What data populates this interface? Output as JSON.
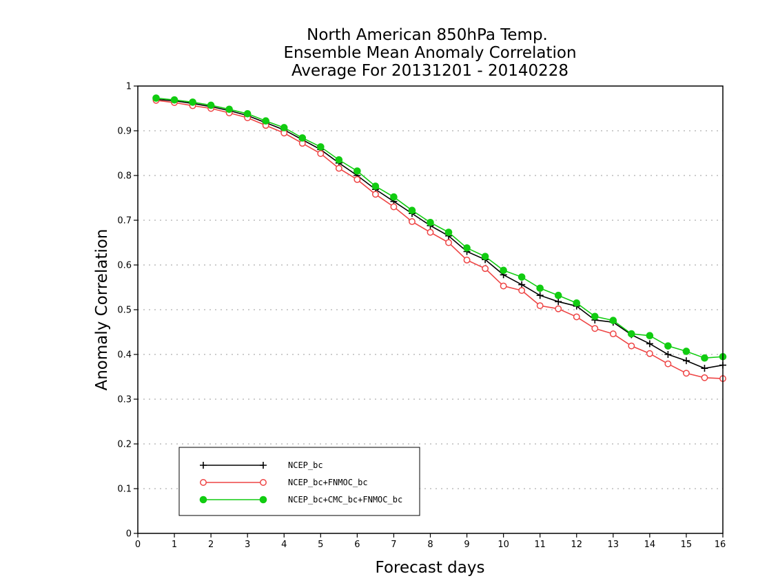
{
  "chart_data": {
    "type": "line",
    "title_lines": [
      "North American 850hPa Temp.",
      "Ensemble Mean Anomaly Correlation",
      "Average For 20131201 - 20140228"
    ],
    "xlabel": "Forecast days",
    "ylabel": "Anomaly Correlation",
    "xlim": [
      0,
      16
    ],
    "ylim": [
      0,
      1
    ],
    "xticks": [
      0,
      1,
      2,
      3,
      4,
      5,
      6,
      7,
      8,
      9,
      10,
      11,
      12,
      13,
      14,
      15,
      16
    ],
    "yticks": [
      0,
      0.1,
      0.2,
      0.3,
      0.4,
      0.5,
      0.6,
      0.7,
      0.8,
      0.9,
      1
    ],
    "ytick_labels": [
      "0",
      "0.1",
      "0.2",
      "0.3",
      "0.4",
      "0.5",
      "0.6",
      "0.7",
      "0.8",
      "0.9",
      "1"
    ],
    "grid": "horizontal-dotted",
    "legend_position": "bottom-left",
    "x": [
      0.5,
      1,
      1.5,
      2,
      2.5,
      3,
      3.5,
      4,
      4.5,
      5,
      5.5,
      6,
      6.5,
      7,
      7.5,
      8,
      8.5,
      9,
      9.5,
      10,
      10.5,
      11,
      11.5,
      12,
      12.5,
      13,
      13.5,
      14,
      14.5,
      15,
      15.5,
      16
    ],
    "series": [
      {
        "name": "NCEP_bc",
        "color": "#000000",
        "marker": "plus",
        "values": [
          0.97,
          0.967,
          0.961,
          0.954,
          0.945,
          0.934,
          0.918,
          0.902,
          0.88,
          0.858,
          0.828,
          0.8,
          0.769,
          0.742,
          0.715,
          0.688,
          0.665,
          0.63,
          0.612,
          0.578,
          0.556,
          0.532,
          0.518,
          0.508,
          0.477,
          0.472,
          0.444,
          0.424,
          0.4,
          0.386,
          0.369,
          0.376
        ]
      },
      {
        "name": "NCEP_bc+FNMOC_bc",
        "color": "#ee4444",
        "marker": "open-circle",
        "values": [
          0.968,
          0.963,
          0.956,
          0.95,
          0.94,
          0.929,
          0.912,
          0.895,
          0.872,
          0.849,
          0.816,
          0.791,
          0.758,
          0.73,
          0.697,
          0.673,
          0.65,
          0.611,
          0.592,
          0.553,
          0.543,
          0.509,
          0.502,
          0.484,
          0.458,
          0.446,
          0.419,
          0.402,
          0.379,
          0.358,
          0.348,
          0.346
        ]
      },
      {
        "name": "NCEP_bc+CMC_bc+FNMOC_bc",
        "color": "#11cc11",
        "marker": "filled-circle",
        "values": [
          0.973,
          0.969,
          0.964,
          0.957,
          0.948,
          0.938,
          0.922,
          0.907,
          0.884,
          0.864,
          0.835,
          0.81,
          0.776,
          0.752,
          0.722,
          0.695,
          0.673,
          0.638,
          0.619,
          0.588,
          0.573,
          0.548,
          0.532,
          0.515,
          0.485,
          0.476,
          0.446,
          0.442,
          0.419,
          0.407,
          0.392,
          0.395
        ]
      }
    ]
  }
}
